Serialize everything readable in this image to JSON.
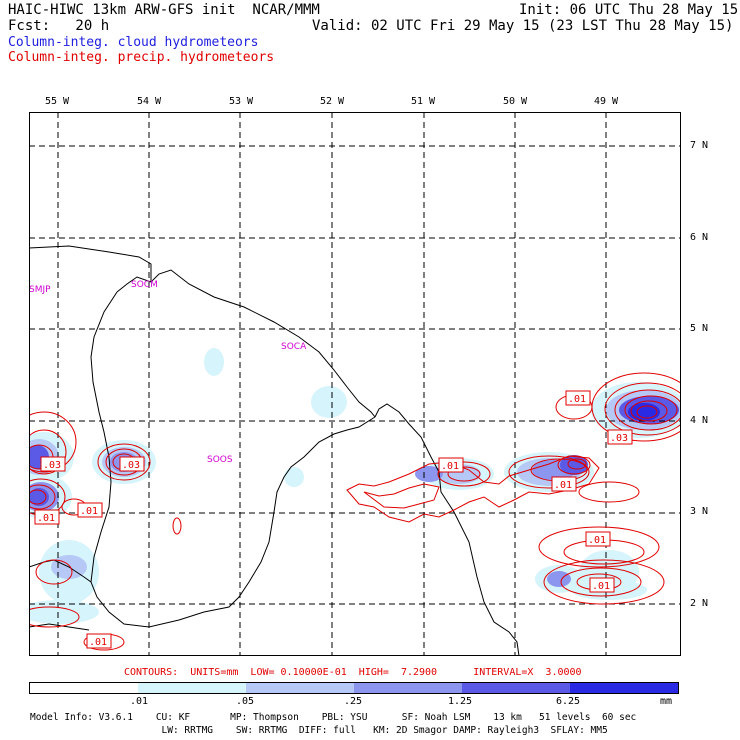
{
  "header": {
    "line1_left": "HAIC-HIWC 13km ARW-GFS init  NCAR/MMM",
    "line1_right": "Init: 06 UTC Thu 28 May 15",
    "line2_left": "Fcst:   20 h",
    "line2_right": "Valid: 02 UTC Fri 29 May 15 (23 LST Thu 28 May 15)",
    "field_cloud": "Column-integ. cloud hydrometeors",
    "field_precip": "Column-integ. precip. hydrometeors"
  },
  "colors": {
    "cloud_text": "#2020e0",
    "precip_text": "#e00000",
    "station_text": "#d000d0",
    "shade": [
      "#ffffff",
      "#d6f4fb",
      "#b6c8f5",
      "#8c96ee",
      "#5a5ae6",
      "#2a2ae4"
    ]
  },
  "map": {
    "lon_labels": [
      "55 W",
      "54 W",
      "53 W",
      "52 W",
      "51 W",
      "50 W",
      "49 W"
    ],
    "lat_labels": [
      "7 N",
      "6 N",
      "5 N",
      "4 N",
      "3 N",
      "2 N"
    ],
    "stations": [
      "SMJP",
      "SOCM",
      "SOCA",
      "SOOS"
    ],
    "contour_labels": [
      ".03",
      ".03",
      ".01",
      ".01",
      ".01",
      ".01",
      ".01",
      ".03",
      ".01",
      ".01",
      ".01"
    ]
  },
  "contours_text": "CONTOURS:  UNITS=mm  LOW= 0.10000E-01  HIGH=  7.2900      INTERVAL=X  3.0000",
  "colorbar": {
    "ticks": [
      ".01",
      ".05",
      ".25",
      "1.25",
      "6.25"
    ],
    "units": "mm"
  },
  "model_info": {
    "line1": "Model Info: V3.6.1    CU: KF       MP: Thompson    PBL: YSU      SF: Noah LSM    13 km   51 levels  60 sec",
    "line2": "                       LW: RRTMG    SW: RRTMG  DIFF: full   KM: 2D Smagor DAMP: Rayleigh3  SFLAY: MM5"
  }
}
